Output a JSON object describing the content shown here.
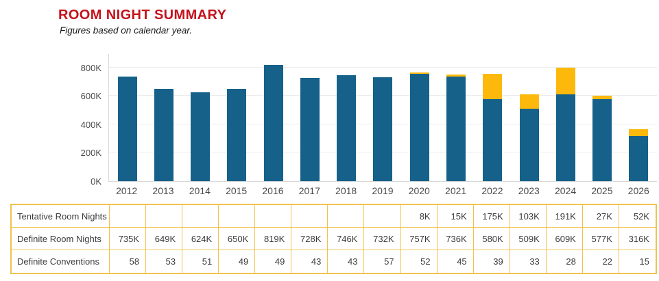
{
  "header": {
    "title": "ROOM NIGHT SUMMARY",
    "subtitle": "Figures based on calendar year."
  },
  "colors": {
    "title_red": "#C4121B",
    "definite_blue": "#15618A",
    "tentative_yellow": "#FCB90B",
    "table_border_gold": "#F1C24D",
    "gridline_gray": "#ececec",
    "axis_text_gray": "#4a4a4a"
  },
  "chart_data": {
    "type": "bar",
    "stacked": true,
    "title": "ROOM NIGHT SUMMARY",
    "subtitle": "Figures based on calendar year.",
    "x": [
      "2012",
      "2013",
      "2014",
      "2015",
      "2016",
      "2017",
      "2018",
      "2019",
      "2020",
      "2021",
      "2022",
      "2023",
      "2024",
      "2025",
      "2026"
    ],
    "series": [
      {
        "name": "Definite Room Nights",
        "unit": "K",
        "values": [
          735,
          649,
          624,
          650,
          819,
          728,
          746,
          732,
          757,
          736,
          580,
          509,
          609,
          577,
          316
        ]
      },
      {
        "name": "Tentative Room Nights",
        "unit": "K",
        "values": [
          0,
          0,
          0,
          0,
          0,
          0,
          0,
          0,
          8,
          15,
          175,
          103,
          191,
          27,
          52
        ]
      }
    ],
    "xlabel": "",
    "ylabel": "",
    "ylim": [
      0,
      900
    ],
    "yticks": [
      {
        "value": 0,
        "label": "0K"
      },
      {
        "value": 200,
        "label": "200K"
      },
      {
        "value": 400,
        "label": "400K"
      },
      {
        "value": 600,
        "label": "600K"
      },
      {
        "value": 800,
        "label": "800K"
      }
    ],
    "grid": true,
    "legend": "none"
  },
  "table": {
    "rows": [
      {
        "label": "Tentative Room Nights",
        "values": [
          "",
          "",
          "",
          "",
          "",
          "",
          "",
          "",
          "8K",
          "15K",
          "175K",
          "103K",
          "191K",
          "27K",
          "52K"
        ]
      },
      {
        "label": "Definite Room Nights",
        "values": [
          "735K",
          "649K",
          "624K",
          "650K",
          "819K",
          "728K",
          "746K",
          "732K",
          "757K",
          "736K",
          "580K",
          "509K",
          "609K",
          "577K",
          "316K"
        ]
      },
      {
        "label": "Definite Conventions",
        "values": [
          "58",
          "53",
          "51",
          "49",
          "49",
          "43",
          "43",
          "57",
          "52",
          "45",
          "39",
          "33",
          "28",
          "22",
          "15"
        ]
      }
    ]
  }
}
